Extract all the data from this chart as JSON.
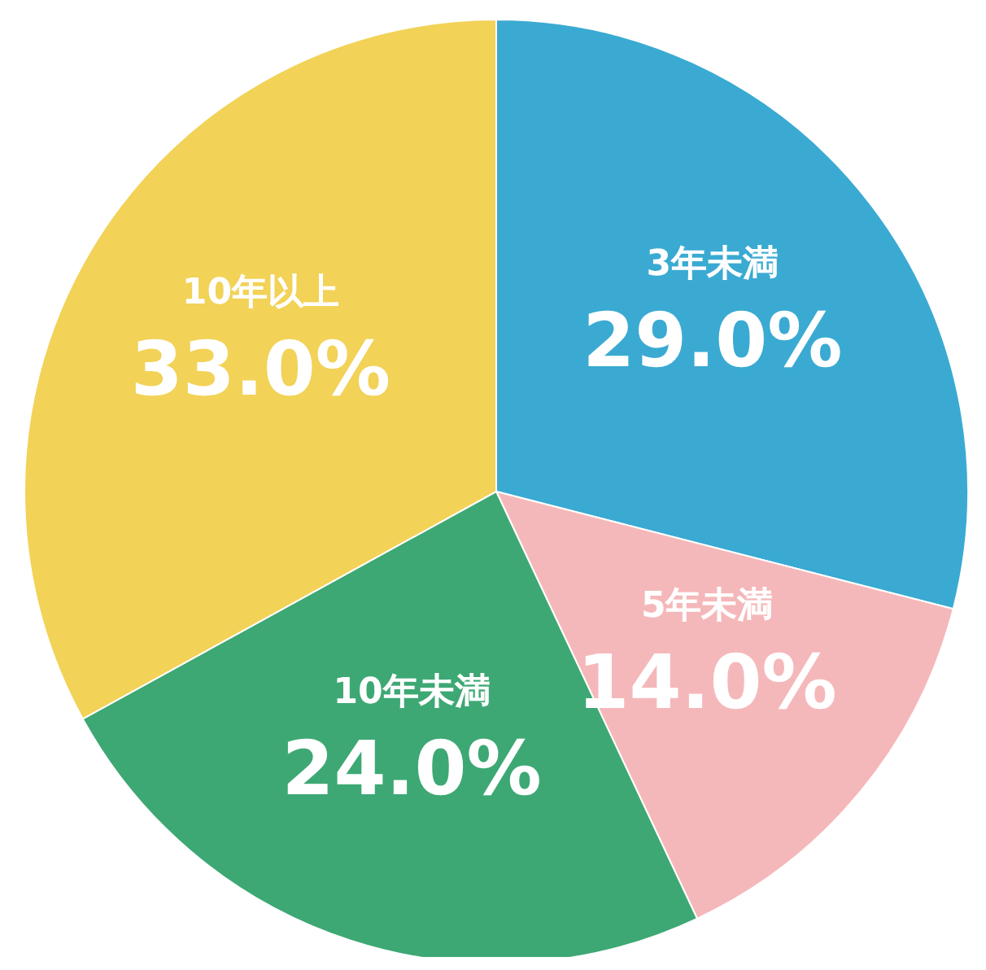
{
  "chart_data": {
    "type": "pie",
    "categories": [
      "3年未満",
      "5年未満",
      "10年未満",
      "10年以上"
    ],
    "values": [
      29,
      14,
      24,
      33
    ],
    "colors": [
      "#3aaad2",
      "#f5b8ba",
      "#3da874",
      "#f2d257"
    ],
    "value_labels": [
      "29.0%",
      "14.0%",
      "24.0%",
      "33.0%"
    ]
  }
}
